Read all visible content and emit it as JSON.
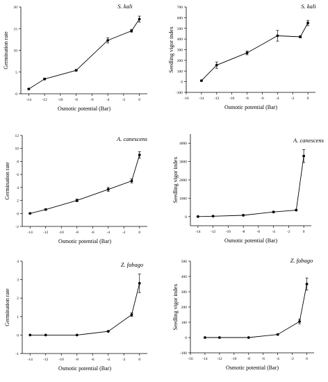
{
  "chart_data": [
    {
      "id": "p1",
      "type": "line",
      "title": "S. kali",
      "xlabel": "Osmotic potential (Bar)",
      "ylabel": "Germination rate",
      "xlim": [
        -15,
        1
      ],
      "ylim": [
        0,
        20
      ],
      "xticks": [
        -14,
        -12,
        -10,
        -8,
        -6,
        -4,
        -2,
        0
      ],
      "yticks": [
        0,
        5,
        10,
        15,
        20
      ],
      "x": [
        -14,
        -12,
        -8,
        -4,
        -1,
        0
      ],
      "y": [
        1.1,
        3.4,
        5.4,
        12.3,
        14.5,
        17.2
      ],
      "err": [
        0.1,
        0.2,
        0.2,
        0.6,
        0.3,
        0.7
      ]
    },
    {
      "id": "p2",
      "type": "line",
      "title": "S. kali",
      "xlabel": "Osmotic potential (Bar)",
      "ylabel": "Seedling vigor index",
      "xlim": [
        -16,
        1
      ],
      "ylim": [
        -100,
        700
      ],
      "xticks": [
        -16,
        -14,
        -12,
        -10,
        -8,
        -6,
        -4,
        -2,
        0
      ],
      "yticks": [
        -100,
        0,
        100,
        200,
        300,
        400,
        500,
        600,
        700
      ],
      "x": [
        -14,
        -12,
        -8,
        -4,
        -1,
        0
      ],
      "y": [
        10,
        155,
        270,
        430,
        420,
        550
      ],
      "err": [
        5,
        30,
        18,
        50,
        10,
        25
      ]
    },
    {
      "id": "p3",
      "type": "line",
      "title": "A. canescens",
      "xlabel": "Osmotic potential (Bar)",
      "ylabel": "Germination rate",
      "xlim": [
        -15,
        1
      ],
      "ylim": [
        -2,
        12
      ],
      "xticks": [
        -14,
        -12,
        -10,
        -8,
        -6,
        -4,
        -2,
        0
      ],
      "yticks": [
        -2,
        0,
        2,
        4,
        6,
        8,
        10,
        12
      ],
      "x": [
        -14,
        -12,
        -8,
        -4,
        -1,
        0
      ],
      "y": [
        0.0,
        0.6,
        2.0,
        3.7,
        5.0,
        9.0
      ],
      "err": [
        0.05,
        0.1,
        0.2,
        0.3,
        0.3,
        0.5
      ]
    },
    {
      "id": "p4",
      "type": "line",
      "title": "A. canescens",
      "xlabel": "Osmotic potential (Bar)",
      "ylabel": "Seedling vigor index",
      "xlim": [
        -15,
        1
      ],
      "ylim": [
        -500,
        4500
      ],
      "xticks": [
        -14,
        -12,
        -10,
        -8,
        -6,
        -4,
        -2,
        0
      ],
      "yticks": [
        0,
        1000,
        2000,
        3000,
        4000
      ],
      "x": [
        -14,
        -12,
        -8,
        -4,
        -1,
        0
      ],
      "y": [
        0,
        20,
        70,
        250,
        350,
        3300
      ],
      "err": [
        5,
        10,
        10,
        20,
        30,
        350
      ]
    },
    {
      "id": "p5",
      "type": "line",
      "title": "Z. fabago",
      "xlabel": "Osmotic potential (Bar)",
      "ylabel": "Germination rate",
      "xlim": [
        -15,
        1
      ],
      "ylim": [
        -1,
        4
      ],
      "xticks": [
        -14,
        -12,
        -10,
        -8,
        -6,
        -4,
        -2,
        0
      ],
      "yticks": [
        -1,
        0,
        1,
        2,
        3,
        4
      ],
      "x": [
        -14,
        -12,
        -8,
        -4,
        -1,
        0
      ],
      "y": [
        0,
        0,
        0,
        0.2,
        1.1,
        2.8
      ],
      "err": [
        0,
        0,
        0,
        0.03,
        0.1,
        0.5
      ]
    },
    {
      "id": "p6",
      "type": "line",
      "title": "Z. fabago",
      "xlabel": "Osmotic potential (Bar)",
      "ylabel": "Seedling vigor index",
      "xlim": [
        -16,
        1
      ],
      "ylim": [
        -100,
        500
      ],
      "xticks": [
        -16,
        -14,
        -12,
        -10,
        -8,
        -6,
        -4,
        -2,
        0
      ],
      "yticks": [
        -100,
        0,
        100,
        200,
        300,
        400,
        500
      ],
      "x": [
        -14,
        -12,
        -8,
        -4,
        -1,
        0
      ],
      "y": [
        0,
        0,
        0,
        20,
        105,
        350
      ],
      "err": [
        0,
        0,
        0,
        3,
        15,
        40
      ]
    }
  ]
}
